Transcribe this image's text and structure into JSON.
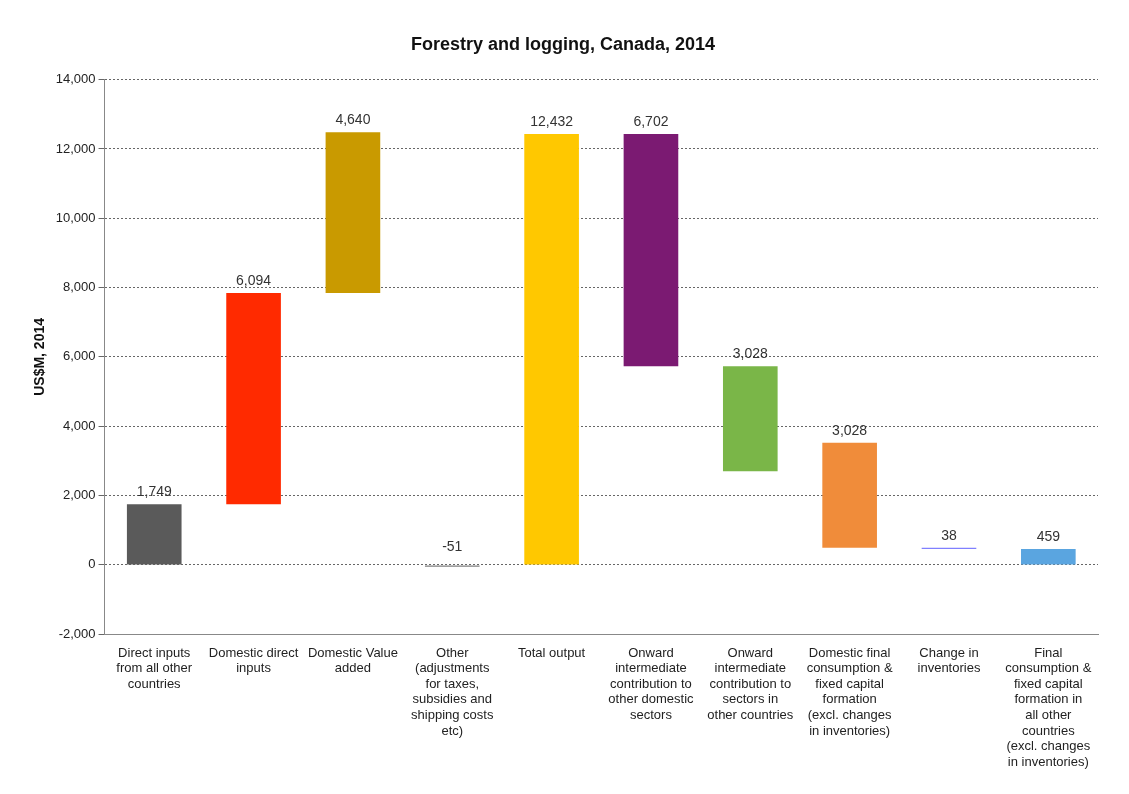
{
  "chart_data": {
    "type": "bar",
    "title": "Forestry and logging, Canada, 2014",
    "ylabel": "US$M, 2014",
    "categories": [
      "Direct inputs from all other countries",
      "Domestic direct inputs",
      "Domestic Value added",
      "Other (adjustments for taxes, subsidies and shipping costs etc)",
      "Total output",
      "Onward intermediate contribution to other domestic sectors",
      "Onward intermediate contribution to sectors in other countries",
      "Domestic final consumption & fixed capital formation (excl. changes in inventories)",
      "Change in inventories",
      "Final consumption & fixed capital formation in all other countries (excl. changes in inventories)"
    ],
    "base": [
      0,
      1749,
      7843,
      0,
      0,
      5730,
      2702,
      497,
      459,
      0
    ],
    "values": [
      1749,
      6094,
      4640,
      -51,
      12432,
      6702,
      3028,
      3028,
      38,
      459
    ],
    "value_labels": [
      "1,749",
      "6,094",
      "4,640",
      "-51",
      "12,432",
      "6,702",
      "3,028",
      "3,028",
      "38",
      "459"
    ],
    "colors": [
      "#5a5a5a",
      "#ff2a00",
      "#c99a00",
      "#7f7f7f",
      "#ffc800",
      "#7b1a72",
      "#7ab648",
      "#f08c3a",
      "#8080ff",
      "#5aa5e0"
    ],
    "ylim": [
      -2000,
      14000
    ],
    "yticks": [
      {
        "value": -2000,
        "label": "-2,000"
      },
      0,
      {
        "value": 2000,
        "label": "2,000"
      },
      {
        "value": 4000,
        "label": "4,000"
      },
      {
        "value": 6000,
        "label": "6,000"
      },
      {
        "value": 8000,
        "label": "8,000"
      },
      {
        "value": 10000,
        "label": "10,000"
      },
      {
        "value": 12000,
        "label": "12,000"
      },
      {
        "value": 14000,
        "label": "14,000"
      }
    ],
    "grid": "y",
    "legend": false
  }
}
